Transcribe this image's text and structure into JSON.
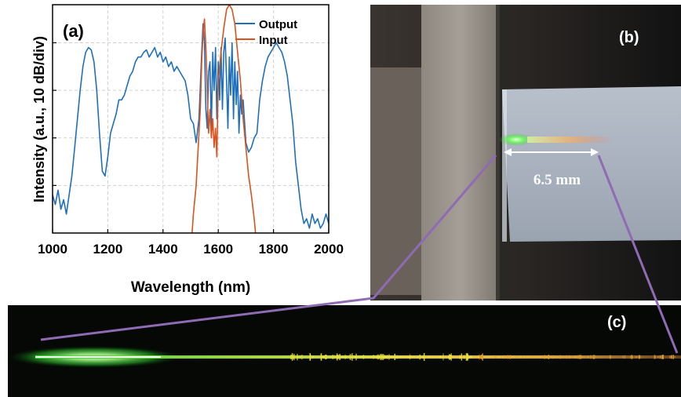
{
  "colors": {
    "output": "#1f6fbf",
    "input": "#d9531e",
    "connector": "#8e6bb3",
    "arrow": "#ffffff"
  },
  "panel_b": {
    "label": "(b)",
    "scale_text": "6.5 mm"
  },
  "panel_c": {
    "label": "(c)"
  },
  "chart_data": {
    "type": "line",
    "panel_label": "(a)",
    "title": "",
    "xlabel": "Wavelength (nm)",
    "ylabel": "Intensity (a.u., 10 dB/div)",
    "xlim": [
      1000,
      2000
    ],
    "ylim": [
      -48,
      0
    ],
    "x_ticks": [
      1000,
      1200,
      1400,
      1600,
      1800,
      2000
    ],
    "grid": true,
    "legend_position": "top-right",
    "series": [
      {
        "name": "Output",
        "color": "#1f6fbf",
        "x": [
          1000,
          1010,
          1020,
          1030,
          1040,
          1050,
          1060,
          1070,
          1080,
          1090,
          1100,
          1110,
          1120,
          1130,
          1140,
          1150,
          1160,
          1170,
          1180,
          1190,
          1200,
          1210,
          1220,
          1230,
          1240,
          1250,
          1260,
          1270,
          1280,
          1290,
          1300,
          1310,
          1320,
          1330,
          1340,
          1350,
          1360,
          1370,
          1380,
          1390,
          1400,
          1410,
          1420,
          1430,
          1440,
          1450,
          1460,
          1470,
          1480,
          1490,
          1500,
          1510,
          1520,
          1530,
          1540,
          1545,
          1550,
          1555,
          1560,
          1565,
          1570,
          1575,
          1580,
          1585,
          1590,
          1595,
          1600,
          1605,
          1610,
          1615,
          1620,
          1625,
          1630,
          1635,
          1640,
          1645,
          1650,
          1655,
          1660,
          1665,
          1670,
          1675,
          1680,
          1685,
          1690,
          1700,
          1710,
          1720,
          1730,
          1740,
          1750,
          1760,
          1770,
          1780,
          1790,
          1800,
          1810,
          1820,
          1830,
          1840,
          1850,
          1860,
          1870,
          1880,
          1890,
          1900,
          1910,
          1920,
          1930,
          1940,
          1950,
          1960,
          1970,
          1980,
          1990,
          2000
        ],
        "y": [
          -40,
          -42,
          -39,
          -43,
          -41,
          -44,
          -40,
          -36,
          -30,
          -24,
          -18,
          -13,
          -10,
          -9,
          -9.5,
          -12,
          -18,
          -27,
          -35,
          -36,
          -32,
          -27,
          -25,
          -23,
          -20,
          -20,
          -19,
          -17,
          -15,
          -14,
          -12,
          -11,
          -11,
          -10,
          -9.5,
          -11,
          -10,
          -9,
          -11,
          -10,
          -12,
          -11,
          -13,
          -12,
          -14,
          -13,
          -14,
          -15,
          -16,
          -19,
          -24,
          -25,
          -29,
          -24,
          -10,
          -4,
          -8,
          -22,
          -26,
          -14,
          -12,
          -26,
          -10,
          -18,
          -9,
          -24,
          -12,
          -20,
          -9,
          -22,
          -10,
          -7,
          -16,
          -26,
          -11,
          -19,
          -8,
          -24,
          -12,
          -21,
          -14,
          -27,
          -19,
          -23,
          -20,
          -29,
          -31,
          -30,
          -28,
          -27,
          -20,
          -16,
          -13,
          -11,
          -10,
          -9,
          -8,
          -9,
          -10,
          -12,
          -15,
          -20,
          -25,
          -33,
          -38,
          -43,
          -46,
          -45,
          -47,
          -44,
          -46,
          -45,
          -47,
          -46,
          -44,
          -46
        ]
      },
      {
        "name": "Input",
        "color": "#d9531e",
        "x": [
          1505,
          1510,
          1520,
          1530,
          1535,
          1540,
          1545,
          1550,
          1555,
          1560,
          1562,
          1565,
          1570,
          1575,
          1580,
          1585,
          1590,
          1595,
          1600,
          1610,
          1620,
          1630,
          1640,
          1650,
          1660,
          1670,
          1680,
          1690,
          1700,
          1710,
          1720,
          1730,
          1735
        ],
        "y": [
          -48,
          -44,
          -38,
          -27,
          -22,
          -12,
          -6,
          -3,
          -9,
          -17,
          -22,
          -27,
          -22,
          -28,
          -24,
          -30,
          -26,
          -32,
          -16,
          -10,
          -5,
          -1,
          0,
          -1,
          -4,
          -10,
          -16,
          -24,
          -30,
          -36,
          -40,
          -45,
          -48
        ]
      }
    ]
  }
}
